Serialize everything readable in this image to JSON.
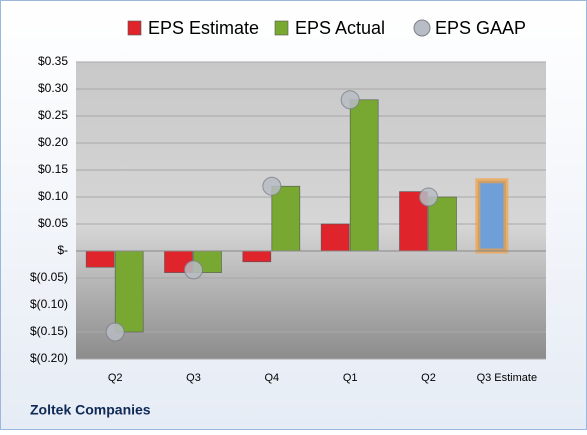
{
  "chart_data": {
    "type": "bar",
    "categories": [
      "Q2",
      "Q3",
      "Q4",
      "Q1",
      "Q2",
      "Q3 Estimate"
    ],
    "series": [
      {
        "name": "EPS Estimate",
        "color": "#e0242b",
        "colors": [
          "#e0242b",
          "#e0242b",
          "#e0242b",
          "#e0242b",
          "#e0242b",
          "#6e9fd8"
        ],
        "values": [
          -0.03,
          -0.04,
          -0.02,
          0.05,
          0.11,
          0.13
        ]
      },
      {
        "name": "EPS Actual",
        "color": "#78a832",
        "values": [
          -0.15,
          -0.04,
          0.12,
          0.28,
          0.1,
          null
        ]
      },
      {
        "name": "EPS GAAP",
        "color": "#b8bcc4",
        "marker": "circle",
        "values": [
          -0.15,
          -0.035,
          0.12,
          0.28,
          0.1,
          null
        ]
      }
    ],
    "ylim": [
      -0.2,
      0.35
    ],
    "yticks": [
      {
        "value": -0.2,
        "label": "$(0.20)"
      },
      {
        "value": -0.15,
        "label": "$(0.15)"
      },
      {
        "value": -0.1,
        "label": "$(0.10)"
      },
      {
        "value": -0.05,
        "label": "$(0.05)"
      },
      {
        "value": 0,
        "label": "$-"
      },
      {
        "value": 0.05,
        "label": "$0.05"
      },
      {
        "value": 0.1,
        "label": "$0.10"
      },
      {
        "value": 0.15,
        "label": "$0.15"
      },
      {
        "value": 0.2,
        "label": "$0.20"
      },
      {
        "value": 0.25,
        "label": "$0.25"
      },
      {
        "value": 0.3,
        "label": "$0.30"
      },
      {
        "value": 0.35,
        "label": "$0.35"
      }
    ],
    "grid": true,
    "legend": "top",
    "footer": "Zoltek Companies"
  }
}
